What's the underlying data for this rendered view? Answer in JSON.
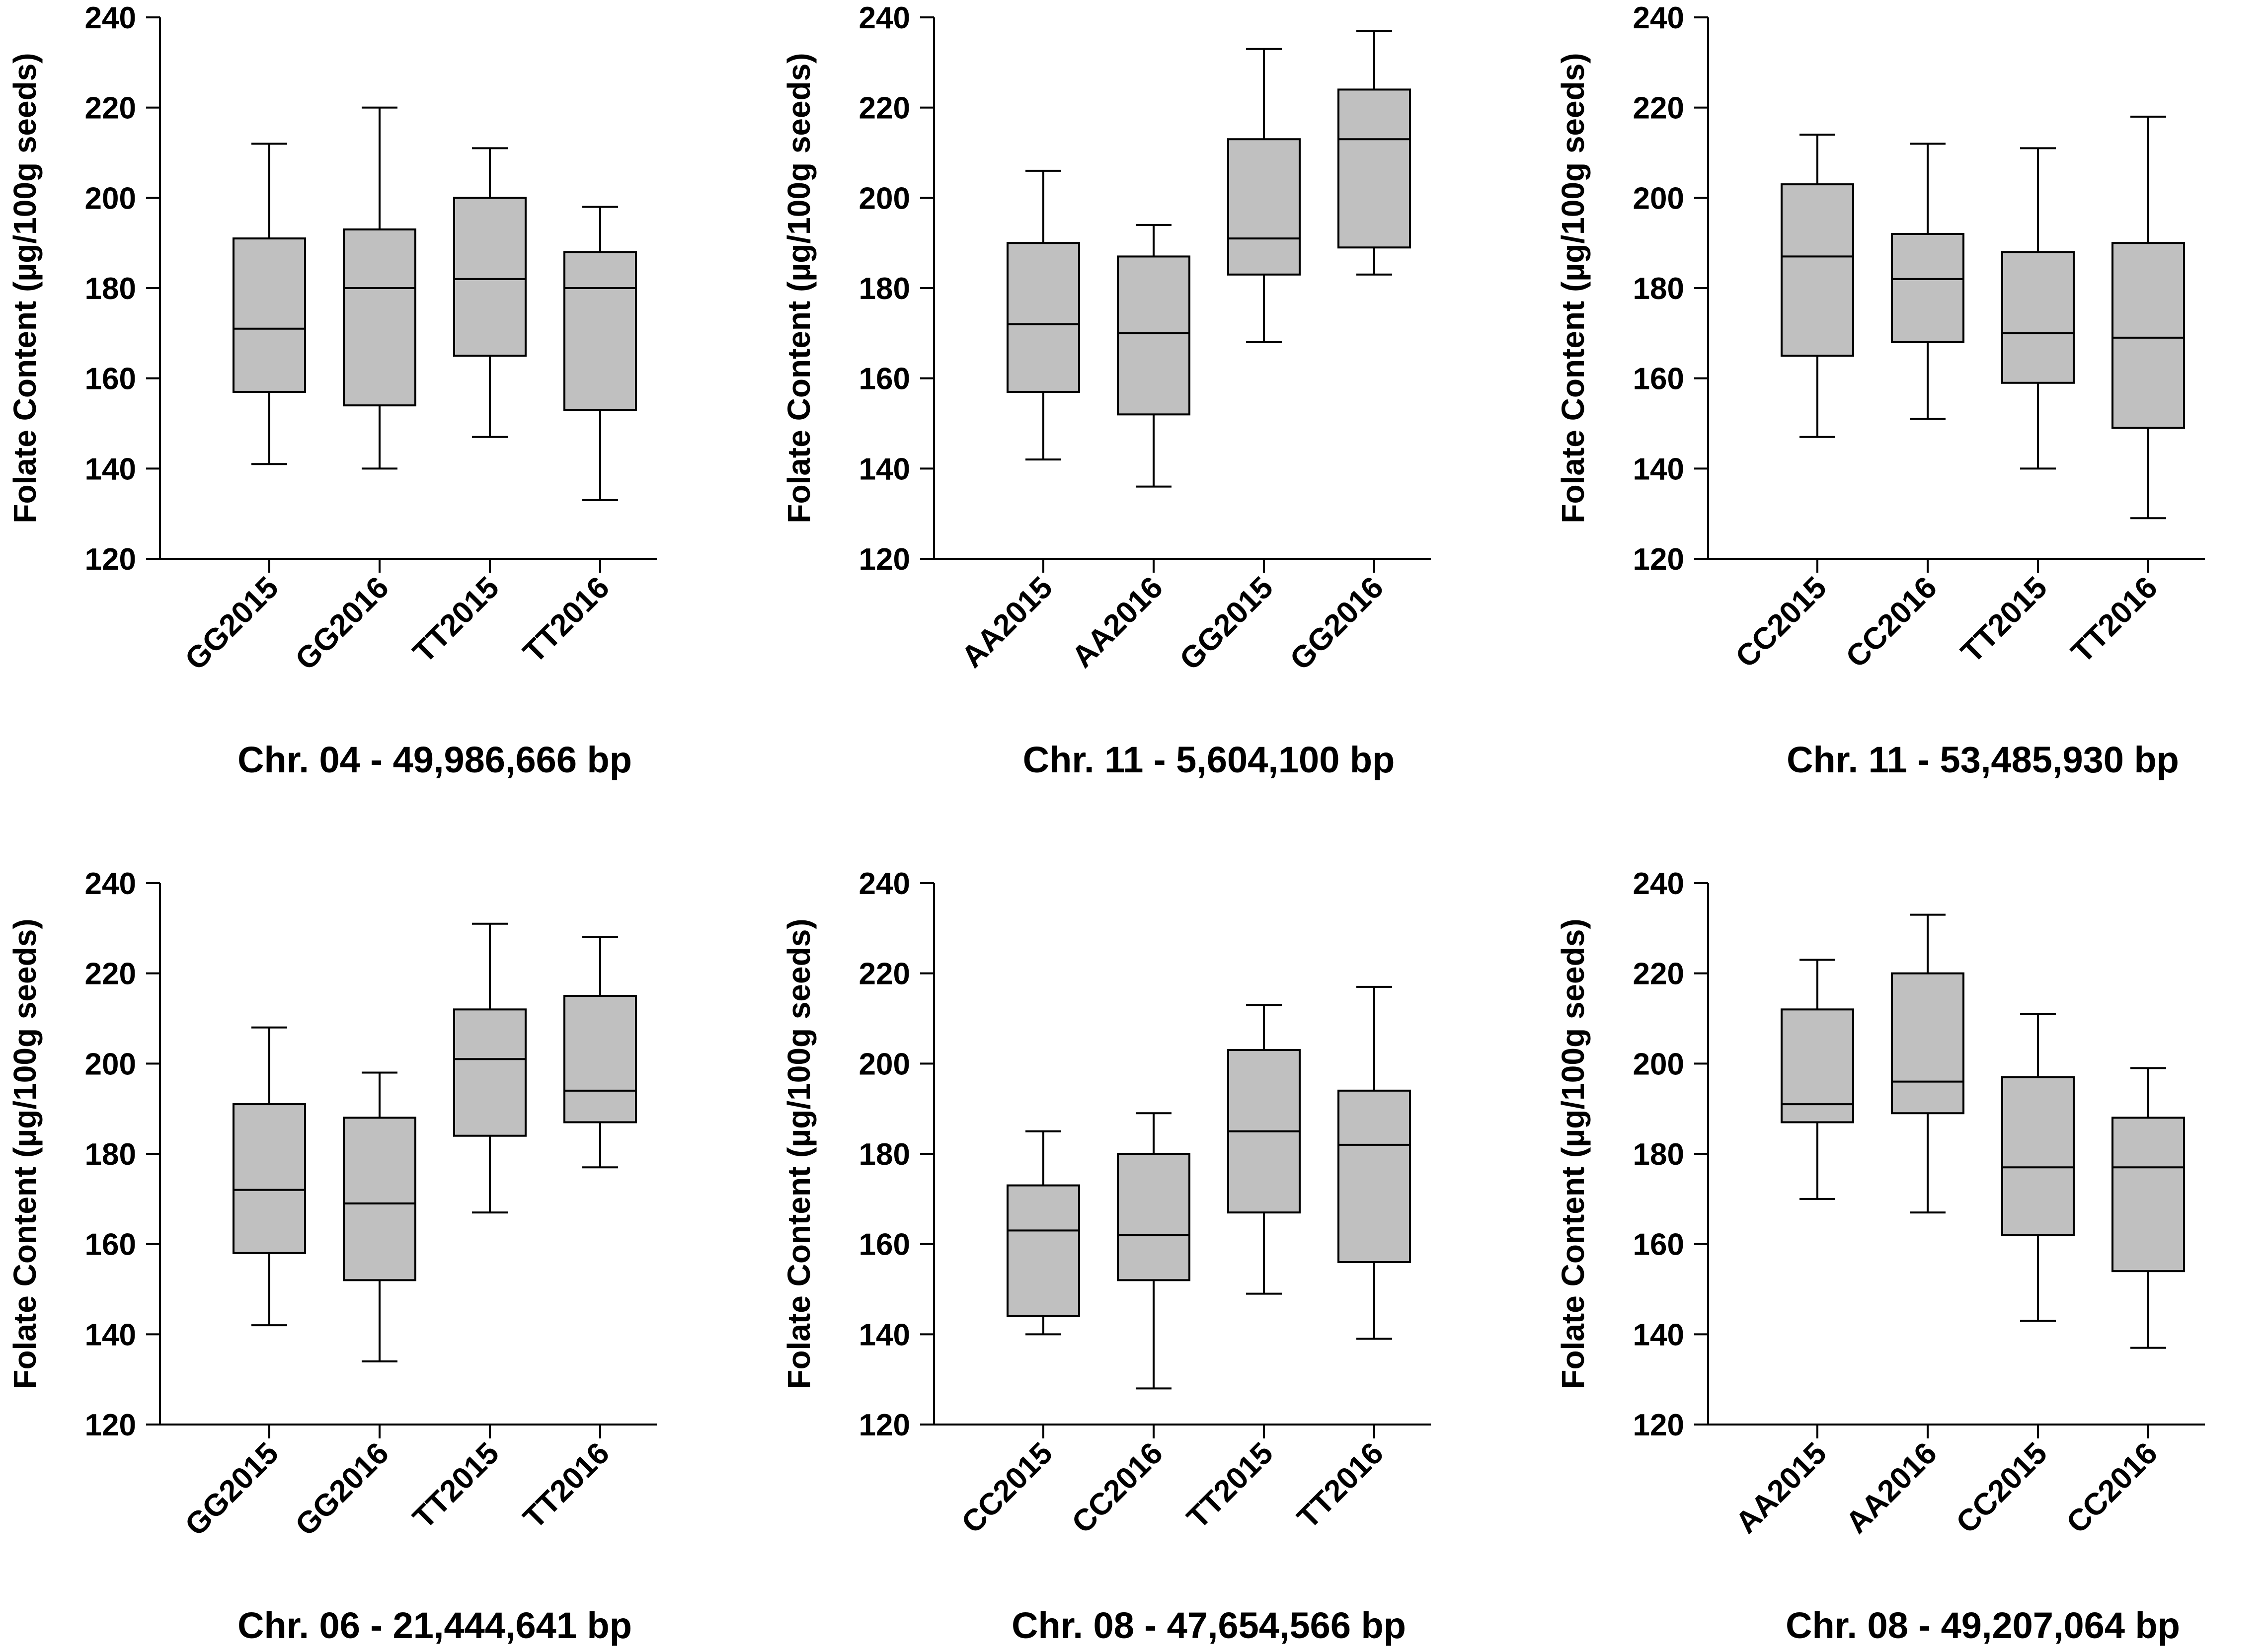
{
  "figure": {
    "style": {
      "box_fill": "#c0c0c0",
      "line_color": "#000000",
      "background": "#ffffff"
    }
  },
  "chart_data": [
    {
      "type": "box",
      "title": "Chr. 04 - 49,986,666 bp",
      "ylabel": "Folate Content (µg/100g seeds)",
      "xlabel": "",
      "ylim": [
        120,
        240
      ],
      "yticks": [
        120,
        140,
        160,
        180,
        200,
        220,
        240
      ],
      "categories": [
        "GG2015",
        "GG2016",
        "TT2015",
        "TT2016"
      ],
      "boxes": [
        {
          "category": "GG2015",
          "whisker_low": 141,
          "q1": 157,
          "median": 171,
          "q3": 191,
          "whisker_high": 212
        },
        {
          "category": "GG2016",
          "whisker_low": 140,
          "q1": 154,
          "median": 180,
          "q3": 193,
          "whisker_high": 220
        },
        {
          "category": "TT2015",
          "whisker_low": 147,
          "q1": 165,
          "median": 182,
          "q3": 200,
          "whisker_high": 211
        },
        {
          "category": "TT2016",
          "whisker_low": 133,
          "q1": 153,
          "median": 180,
          "q3": 188,
          "whisker_high": 198
        }
      ]
    },
    {
      "type": "box",
      "title": "Chr. 11 - 5,604,100 bp",
      "ylabel": "Folate Content (µg/100g seeds)",
      "xlabel": "",
      "ylim": [
        120,
        240
      ],
      "yticks": [
        120,
        140,
        160,
        180,
        200,
        220,
        240
      ],
      "categories": [
        "AA2015",
        "AA2016",
        "GG2015",
        "GG2016"
      ],
      "boxes": [
        {
          "category": "AA2015",
          "whisker_low": 142,
          "q1": 157,
          "median": 172,
          "q3": 190,
          "whisker_high": 206
        },
        {
          "category": "AA2016",
          "whisker_low": 136,
          "q1": 152,
          "median": 170,
          "q3": 187,
          "whisker_high": 194
        },
        {
          "category": "GG2015",
          "whisker_low": 168,
          "q1": 183,
          "median": 191,
          "q3": 213,
          "whisker_high": 233
        },
        {
          "category": "GG2016",
          "whisker_low": 183,
          "q1": 189,
          "median": 213,
          "q3": 224,
          "whisker_high": 237
        }
      ]
    },
    {
      "type": "box",
      "title": "Chr. 11 - 53,485,930 bp",
      "ylabel": "Folate Content (µg/100g seeds)",
      "xlabel": "",
      "ylim": [
        120,
        240
      ],
      "yticks": [
        120,
        140,
        160,
        180,
        200,
        220,
        240
      ],
      "categories": [
        "CC2015",
        "CC2016",
        "TT2015",
        "TT2016"
      ],
      "boxes": [
        {
          "category": "CC2015",
          "whisker_low": 147,
          "q1": 165,
          "median": 187,
          "q3": 203,
          "whisker_high": 214
        },
        {
          "category": "CC2016",
          "whisker_low": 151,
          "q1": 168,
          "median": 182,
          "q3": 192,
          "whisker_high": 212
        },
        {
          "category": "TT2015",
          "whisker_low": 140,
          "q1": 159,
          "median": 170,
          "q3": 188,
          "whisker_high": 211
        },
        {
          "category": "TT2016",
          "whisker_low": 129,
          "q1": 149,
          "median": 169,
          "q3": 190,
          "whisker_high": 218
        }
      ]
    },
    {
      "type": "box",
      "title": "Chr. 06 - 21,444,641 bp",
      "ylabel": "Folate Content (µg/100g seeds)",
      "xlabel": "",
      "ylim": [
        120,
        240
      ],
      "yticks": [
        120,
        140,
        160,
        180,
        200,
        220,
        240
      ],
      "categories": [
        "GG2015",
        "GG2016",
        "TT2015",
        "TT2016"
      ],
      "boxes": [
        {
          "category": "GG2015",
          "whisker_low": 142,
          "q1": 158,
          "median": 172,
          "q3": 191,
          "whisker_high": 208
        },
        {
          "category": "GG2016",
          "whisker_low": 134,
          "q1": 152,
          "median": 169,
          "q3": 188,
          "whisker_high": 198
        },
        {
          "category": "TT2015",
          "whisker_low": 167,
          "q1": 184,
          "median": 201,
          "q3": 212,
          "whisker_high": 231
        },
        {
          "category": "TT2016",
          "whisker_low": 177,
          "q1": 187,
          "median": 194,
          "q3": 215,
          "whisker_high": 228
        }
      ]
    },
    {
      "type": "box",
      "title": "Chr. 08 - 47,654,566 bp",
      "ylabel": "Folate Content (µg/100g seeds)",
      "xlabel": "",
      "ylim": [
        120,
        240
      ],
      "yticks": [
        120,
        140,
        160,
        180,
        200,
        220,
        240
      ],
      "categories": [
        "CC2015",
        "CC2016",
        "TT2015",
        "TT2016"
      ],
      "boxes": [
        {
          "category": "CC2015",
          "whisker_low": 140,
          "q1": 144,
          "median": 163,
          "q3": 173,
          "whisker_high": 185
        },
        {
          "category": "CC2016",
          "whisker_low": 128,
          "q1": 152,
          "median": 162,
          "q3": 180,
          "whisker_high": 189
        },
        {
          "category": "TT2015",
          "whisker_low": 149,
          "q1": 167,
          "median": 185,
          "q3": 203,
          "whisker_high": 213
        },
        {
          "category": "TT2016",
          "whisker_low": 139,
          "q1": 156,
          "median": 182,
          "q3": 194,
          "whisker_high": 217
        }
      ]
    },
    {
      "type": "box",
      "title": "Chr. 08 - 49,207,064 bp",
      "ylabel": "Folate Content (µg/100g seeds)",
      "xlabel": "",
      "ylim": [
        120,
        240
      ],
      "yticks": [
        120,
        140,
        160,
        180,
        200,
        220,
        240
      ],
      "categories": [
        "AA2015",
        "AA2016",
        "CC2015",
        "CC2016"
      ],
      "boxes": [
        {
          "category": "AA2015",
          "whisker_low": 170,
          "q1": 187,
          "median": 191,
          "q3": 212,
          "whisker_high": 223
        },
        {
          "category": "AA2016",
          "whisker_low": 167,
          "q1": 189,
          "median": 196,
          "q3": 220,
          "whisker_high": 233
        },
        {
          "category": "CC2015",
          "whisker_low": 143,
          "q1": 162,
          "median": 177,
          "q3": 197,
          "whisker_high": 211
        },
        {
          "category": "CC2016",
          "whisker_low": 137,
          "q1": 154,
          "median": 177,
          "q3": 188,
          "whisker_high": 199
        }
      ]
    }
  ]
}
